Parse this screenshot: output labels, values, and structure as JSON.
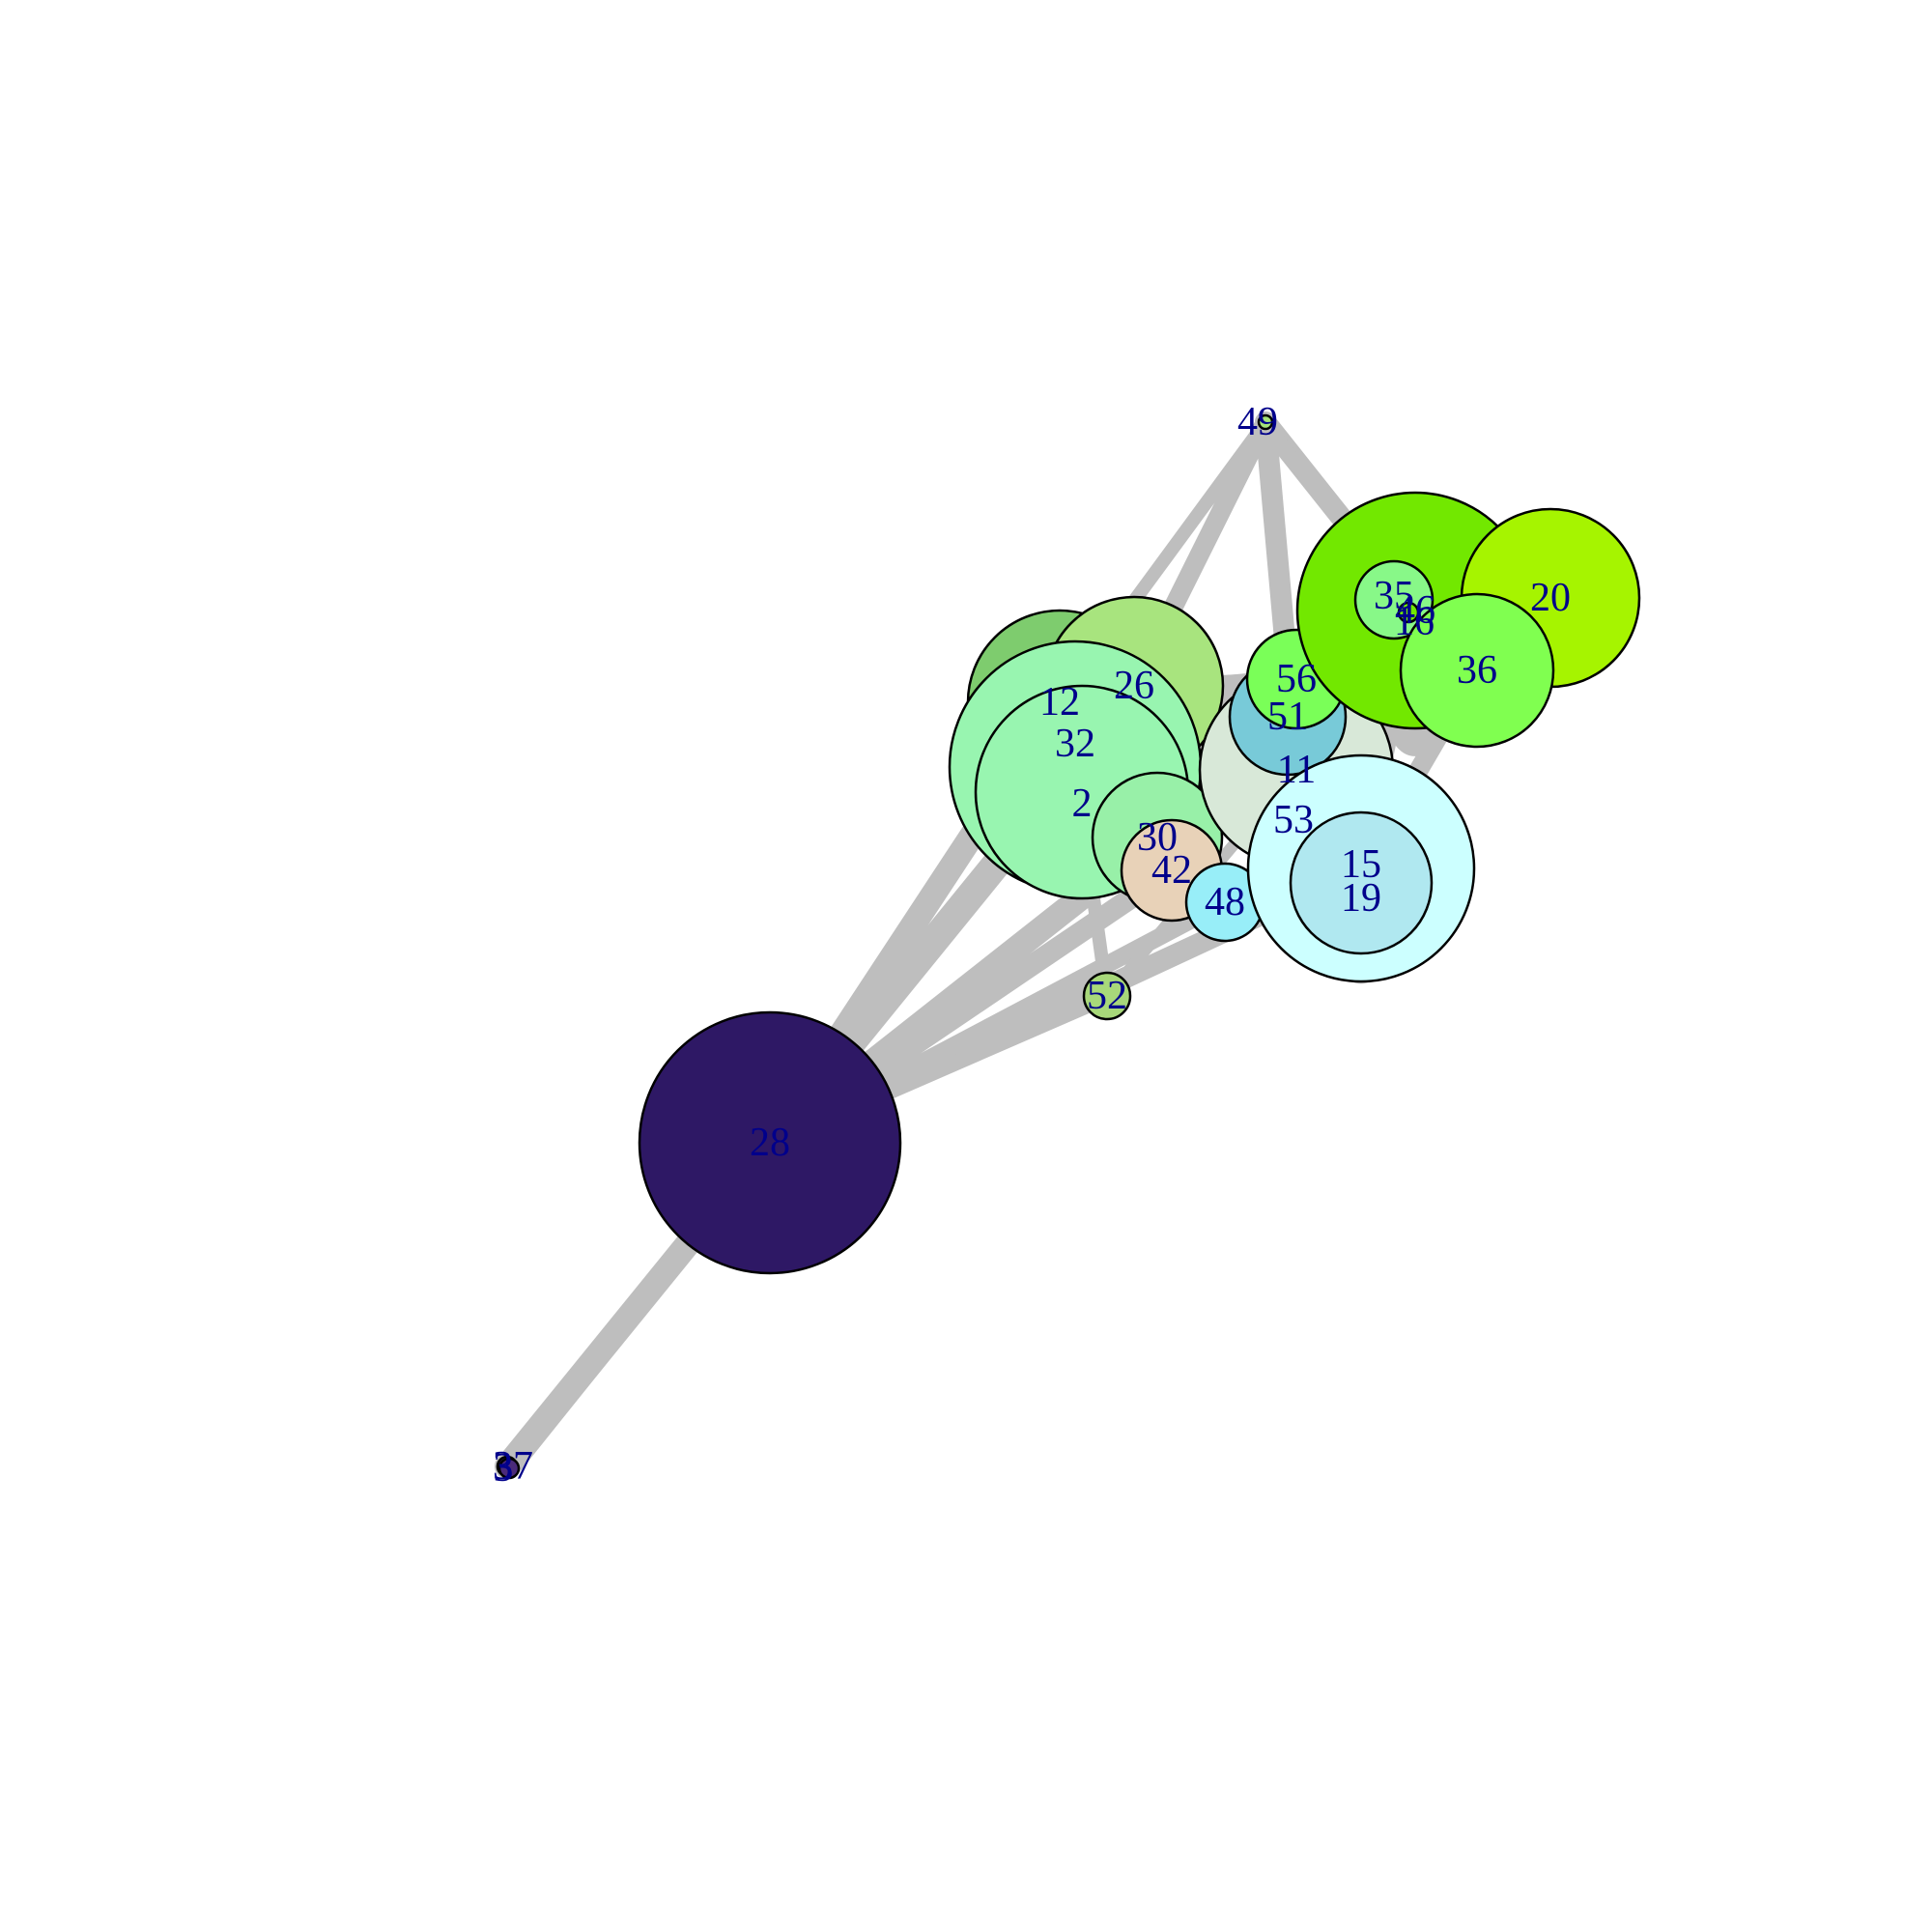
{
  "network": {
    "label_color": "#00008b",
    "edge_color": "#bebebe",
    "nodes": [
      {
        "id": "28",
        "label": "28",
        "color": "#2e1865"
      },
      {
        "id": "37",
        "label": "37",
        "color": "#4a2a7a"
      },
      {
        "id": "3",
        "label": "3",
        "color": "#4a2a7a"
      },
      {
        "id": "49",
        "label": "49",
        "color": "#a6e37a"
      },
      {
        "id": "52",
        "label": "52",
        "color": "#a8d87a"
      },
      {
        "id": "12",
        "label": "12",
        "color": "#7ecc6e"
      },
      {
        "id": "26",
        "label": "26",
        "color": "#a8e47e"
      },
      {
        "id": "32",
        "label": "32",
        "color": "#98f5b0"
      },
      {
        "id": "2",
        "label": "2",
        "color": "#98f5b0"
      },
      {
        "id": "30",
        "label": "30",
        "color": "#98f0a8"
      },
      {
        "id": "42",
        "label": "42",
        "color": "#e8d2b8"
      },
      {
        "id": "48",
        "label": "48",
        "color": "#98eef8"
      },
      {
        "id": "11",
        "label": "11",
        "color": "#d8e8d8"
      },
      {
        "id": "51",
        "label": "51",
        "color": "#78cad8"
      },
      {
        "id": "56",
        "label": "56",
        "color": "#7aff58"
      },
      {
        "id": "53",
        "label": "53",
        "color": "#b8f0d8"
      },
      {
        "id": "15",
        "label": "15",
        "color": "#ccffff"
      },
      {
        "id": "19",
        "label": "19",
        "color": "#b0e8f0"
      },
      {
        "id": "46",
        "label": "46",
        "color": "#72e800"
      },
      {
        "id": "35",
        "label": "35",
        "color": "#88f888"
      },
      {
        "id": "16",
        "label": "16",
        "color": "#72e800"
      },
      {
        "id": "20",
        "label": "20",
        "color": "#a6f400"
      },
      {
        "id": "36",
        "label": "36",
        "color": "#80ff50"
      }
    ],
    "edges": [
      [
        "37",
        "28"
      ],
      [
        "3",
        "28"
      ],
      [
        "28",
        "32"
      ],
      [
        "28",
        "12"
      ],
      [
        "28",
        "30"
      ],
      [
        "28",
        "42"
      ],
      [
        "28",
        "52"
      ],
      [
        "28",
        "15"
      ],
      [
        "28",
        "48"
      ],
      [
        "49",
        "26"
      ],
      [
        "49",
        "12"
      ],
      [
        "49",
        "11"
      ],
      [
        "49",
        "46"
      ],
      [
        "49",
        "16"
      ],
      [
        "49",
        "51"
      ],
      [
        "32",
        "46"
      ],
      [
        "12",
        "56"
      ],
      [
        "42",
        "46"
      ],
      [
        "26",
        "36"
      ],
      [
        "52",
        "32"
      ],
      [
        "52",
        "11"
      ],
      [
        "15",
        "36"
      ],
      [
        "15",
        "46"
      ],
      [
        "19",
        "19"
      ],
      [
        "46",
        "46"
      ]
    ]
  }
}
